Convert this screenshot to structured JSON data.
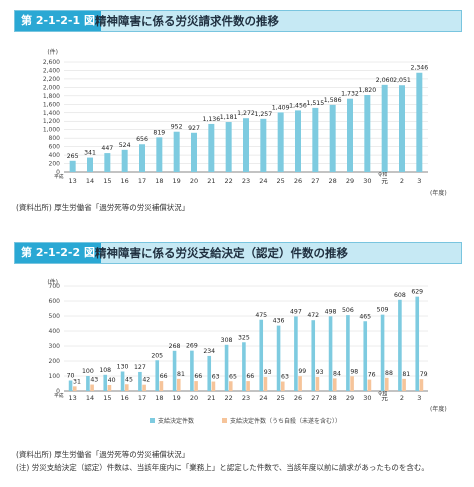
{
  "charts": [
    {
      "fig_label": "第 2-1-2-1 図",
      "title": "精神障害に係る労災請求件数の推移",
      "source": "(資料出所) 厚生労働省「過労死等の労災補償状況」"
    },
    {
      "fig_label": "第 2-1-2-2 図",
      "title": "精神障害に係る労災支給決定（認定）件数の推移",
      "source": "(資料出所) 厚生労働省「過労死等の労災補償状況」",
      "note": "(注) 労災支給決定（認定）件数は、当該年度内に「業務上」と認定した件数で、当該年度以前に請求があったものを含む。"
    }
  ],
  "chart_data": [
    {
      "type": "bar",
      "unit_label": "(件)",
      "x_era_label": "平成",
      "x_era2_label": "令和",
      "x_suffix": "(年度)",
      "categories": [
        "13",
        "14",
        "15",
        "16",
        "17",
        "18",
        "19",
        "20",
        "21",
        "22",
        "23",
        "24",
        "25",
        "26",
        "27",
        "28",
        "29",
        "30",
        "元",
        "2",
        "3"
      ],
      "values": [
        265,
        341,
        447,
        524,
        656,
        819,
        952,
        927,
        1136,
        1181,
        1272,
        1257,
        1409,
        1456,
        1515,
        1586,
        1732,
        1820,
        2060,
        2051,
        2346
      ],
      "value_labels": [
        "265",
        "341",
        "447",
        "524",
        "656",
        "819",
        "952",
        "927",
        "1,136",
        "1,181",
        "1,272",
        "1,257",
        "1,409",
        "1,456",
        "1,515",
        "1,586",
        "1,732",
        "1,820",
        "2,060",
        "2,051",
        "2,346"
      ],
      "ylim": [
        0,
        2600
      ],
      "yticks": [
        "0",
        "200",
        "400",
        "600",
        "800",
        "1,000",
        "1,200",
        "1,400",
        "1,600",
        "1,800",
        "2,000",
        "2,200",
        "2,400",
        "2,600"
      ],
      "color": "#7ecbe0"
    },
    {
      "type": "bar",
      "unit_label": "(件)",
      "x_era_label": "平成",
      "x_era2_label": "令和",
      "x_suffix": "(年度)",
      "categories": [
        "13",
        "14",
        "15",
        "16",
        "17",
        "18",
        "19",
        "20",
        "21",
        "22",
        "23",
        "24",
        "25",
        "26",
        "27",
        "28",
        "29",
        "30",
        "元",
        "2",
        "3"
      ],
      "series": [
        {
          "name": "支給決定件数",
          "color": "#7ecbe0",
          "values": [
            70,
            100,
            108,
            130,
            127,
            205,
            268,
            269,
            234,
            308,
            325,
            475,
            436,
            497,
            472,
            498,
            506,
            465,
            509,
            608,
            629
          ]
        },
        {
          "name": "支給決定件数（うち自殺（未遂を含む））",
          "color": "#f6c49a",
          "values": [
            31,
            43,
            40,
            45,
            42,
            66,
            81,
            66,
            63,
            65,
            66,
            93,
            63,
            99,
            93,
            84,
            98,
            76,
            88,
            81,
            79
          ]
        }
      ],
      "ylim": [
        0,
        700
      ],
      "yticks": [
        "0",
        "100",
        "200",
        "300",
        "400",
        "500",
        "600",
        "700"
      ]
    }
  ]
}
